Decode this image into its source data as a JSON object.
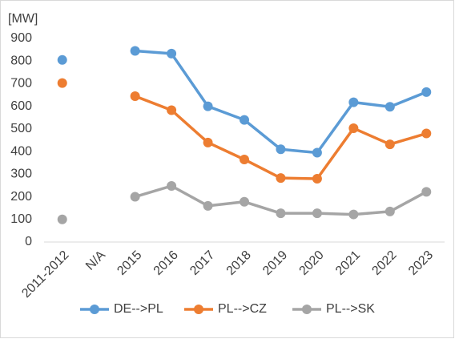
{
  "chart_data": {
    "type": "line",
    "y_axis_label": "[MW]",
    "categories": [
      "2011-2012",
      "N/A",
      "2015",
      "2016",
      "2017",
      "2018",
      "2019",
      "2020",
      "2021",
      "2022",
      "2023"
    ],
    "series": [
      {
        "name": "DE-->PL",
        "color": "#5b9bd5",
        "values": [
          805,
          null,
          845,
          833,
          600,
          540,
          410,
          395,
          618,
          598,
          663
        ]
      },
      {
        "name": "PL-->CZ",
        "color": "#ed7d31",
        "values": [
          703,
          null,
          645,
          583,
          440,
          365,
          283,
          280,
          503,
          432,
          480
        ]
      },
      {
        "name": "PL-->SK",
        "color": "#a5a5a5",
        "values": [
          100,
          null,
          200,
          248,
          160,
          178,
          127,
          127,
          122,
          135,
          222
        ]
      }
    ],
    "ylim": [
      0,
      900
    ],
    "yticks": [
      0,
      100,
      200,
      300,
      400,
      500,
      600,
      700,
      800,
      900
    ],
    "grid": false,
    "legend": "bottom"
  }
}
